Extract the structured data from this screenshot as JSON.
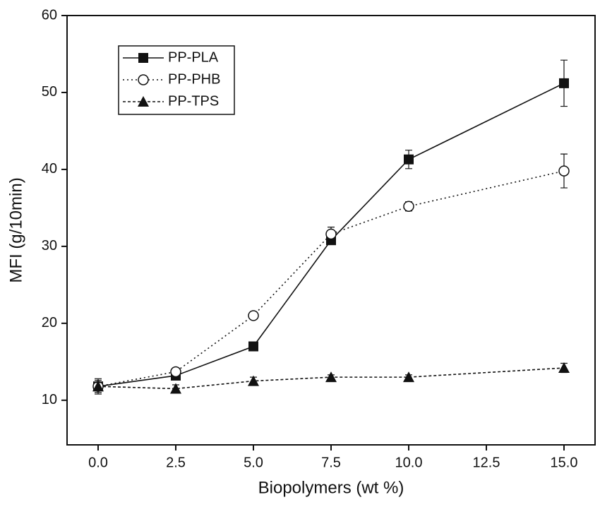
{
  "chart_data": {
    "type": "line",
    "x_label": "Biopolymers (wt %)",
    "y_label": "MFI (g/10min)",
    "x": [
      0,
      2.5,
      5,
      7.5,
      10,
      15
    ],
    "series": [
      {
        "name": "PP-PLA",
        "color": "#111111",
        "marker": "square",
        "linestyle": "solid",
        "values": [
          11.8,
          13.2,
          17,
          30.8,
          41.3,
          51.2
        ],
        "errors": [
          1.0,
          0.3,
          0.3,
          0.5,
          1.2,
          3.0
        ]
      },
      {
        "name": "PP-PHB",
        "color": "#111111",
        "marker": "circle",
        "linestyle": "dotted",
        "values": [
          11.8,
          13.7,
          21,
          31.6,
          35.2,
          39.8
        ],
        "errors": [
          0.8,
          0.5,
          0.5,
          0.9,
          0.6,
          2.2
        ]
      },
      {
        "name": "PP-TPS",
        "color": "#111111",
        "marker": "triangle",
        "linestyle": "dashed",
        "values": [
          11.8,
          11.5,
          12.5,
          13,
          13,
          14.2
        ],
        "errors": [
          0.5,
          0.5,
          0.5,
          0.3,
          0.3,
          0.6
        ]
      }
    ],
    "xlim": [
      -1,
      16
    ],
    "ylim": [
      4.2,
      60
    ],
    "xticks": [
      {
        "value": 0,
        "label": "0.0"
      },
      2.5,
      {
        "value": 5,
        "label": "5.0"
      },
      7.5,
      {
        "value": 10,
        "label": "10.0"
      },
      12.5,
      {
        "value": 15,
        "label": "15.0"
      }
    ],
    "yticks": [
      10,
      20,
      30,
      40,
      50,
      60
    ],
    "legend": "upper left"
  }
}
